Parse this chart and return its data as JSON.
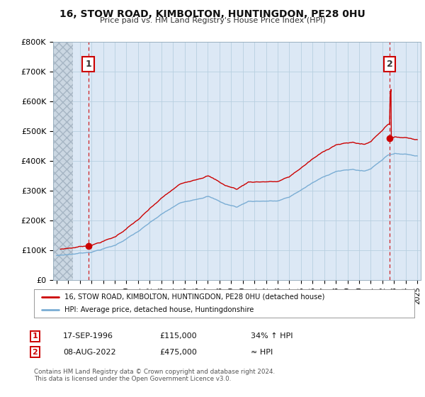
{
  "title": "16, STOW ROAD, KIMBOLTON, HUNTINGDON, PE28 0HU",
  "subtitle": "Price paid vs. HM Land Registry's House Price Index (HPI)",
  "ylim": [
    0,
    800000
  ],
  "yticks": [
    0,
    100000,
    200000,
    300000,
    400000,
    500000,
    600000,
    700000,
    800000
  ],
  "ytick_labels": [
    "£0",
    "£100K",
    "£200K",
    "£300K",
    "£400K",
    "£500K",
    "£600K",
    "£700K",
    "£800K"
  ],
  "xlim_start": 1993.7,
  "xlim_end": 2025.3,
  "sale1_date": 1996.72,
  "sale1_price": 115000,
  "sale2_date": 2022.62,
  "sale2_price": 475000,
  "hatch_end": 1995.4,
  "line_color_price": "#cc0000",
  "line_color_hpi": "#7aadd4",
  "point_color": "#cc0000",
  "dashed_color": "#cc0000",
  "legend_label1": "16, STOW ROAD, KIMBOLTON, HUNTINGDON, PE28 0HU (detached house)",
  "legend_label2": "HPI: Average price, detached house, Huntingdonshire",
  "table_row1": [
    "1",
    "17-SEP-1996",
    "£115,000",
    "34% ↑ HPI"
  ],
  "table_row2": [
    "2",
    "08-AUG-2022",
    "£475,000",
    "≈ HPI"
  ],
  "footnote": "Contains HM Land Registry data © Crown copyright and database right 2024.\nThis data is licensed under the Open Government Licence v3.0.",
  "background_color": "#ffffff",
  "plot_bg_color": "#dce8f5",
  "grid_color": "#b8cfe0",
  "hatch_color": "#c0c8d0"
}
